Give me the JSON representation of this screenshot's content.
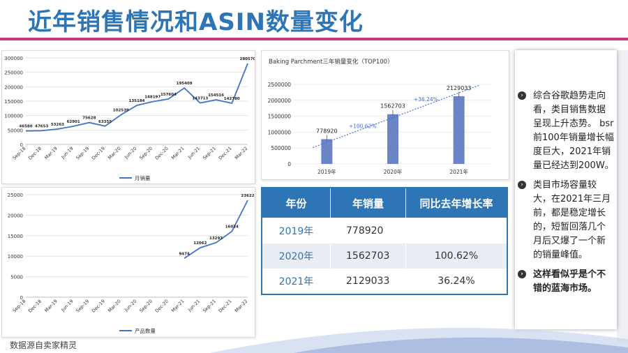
{
  "title": "近年销售情况和ASIN数量变化",
  "footer": "数据源自卖家精灵",
  "colors": {
    "accent": "#2e75b6",
    "title_bar": "#c73b7a",
    "line": "#4472c4",
    "bar": "#6b84c6"
  },
  "chart_data": [
    {
      "type": "line",
      "title": "",
      "x": [
        "Sep-18",
        "Dec-18",
        "Mar-19",
        "Jun-19",
        "Sep-19",
        "Dec-19",
        "Mar-20",
        "Jun-20",
        "Sep-20",
        "Dec-20",
        "Mar-21",
        "Jun-21",
        "Sep-21",
        "Dec-21",
        "Mar-22"
      ],
      "series": [
        {
          "name": "月销量",
          "values": [
            46580,
            47653,
            53263,
            62901,
            75628,
            63355,
            102539,
            135184,
            148197,
            157604,
            195409,
            143713,
            154516,
            142780,
            280570
          ]
        }
      ],
      "ylim": [
        0,
        300000
      ],
      "yticks": [
        "0",
        "50000",
        "100000",
        "150000",
        "200000",
        "250000",
        "300000"
      ],
      "grid": true,
      "legend": "bottom"
    },
    {
      "type": "line",
      "title": "",
      "x": [
        "Sep-18",
        "Dec-18",
        "Mar-19",
        "Jun-19",
        "Sep-19",
        "Dec-19",
        "Mar-20",
        "Jun-20",
        "Sep-20",
        "Dec-20",
        "Mar-21",
        "Jun-21",
        "Sep-21",
        "Dec-21",
        "Mar-22"
      ],
      "series": [
        {
          "name": "产品数量",
          "values": [
            null,
            null,
            null,
            null,
            null,
            null,
            null,
            null,
            null,
            null,
            9474,
            12062,
            13293,
            16034,
            23622
          ]
        }
      ],
      "ylim": [
        0,
        25000
      ],
      "yticks": [
        "0",
        "5000",
        "10000",
        "15000",
        "20000",
        "25000"
      ],
      "grid": true,
      "legend": "bottom"
    },
    {
      "type": "bar",
      "title": "Baking Parchment三年销量变化（TOP100）",
      "categories": [
        "2019年",
        "2020年",
        "2021年"
      ],
      "values": [
        778920,
        1562703,
        2129033
      ],
      "ylim": [
        0,
        2500000
      ],
      "yticks": [
        "0",
        "500000",
        "1000000",
        "1500000",
        "2000000",
        "2500000"
      ],
      "annotations": [
        "+100.62%",
        "+36.24%"
      ],
      "trendline": true
    }
  ],
  "table": {
    "headers": [
      "年份",
      "年销量",
      "同比去年增长率"
    ],
    "rows": [
      [
        "2019年",
        "778920",
        ""
      ],
      [
        "2020年",
        "1562703",
        "100.62%"
      ],
      [
        "2021年",
        "2129033",
        "36.24%"
      ]
    ]
  },
  "panel": {
    "bullets": [
      {
        "text": "综合谷歌趋势走向看，类目销售数据呈现上升态势。  bsr前100年销量增长幅度巨大，2021年销量已经达到200W。",
        "bold": false
      },
      {
        "text": "类目市场容量较大，在2021年三月前，都是稳定增长的，短暂回落几个月后又爆了一个新的销量峰值。",
        "bold": false
      },
      {
        "text": "这样看似乎是个不错的蓝海市场。",
        "bold": true
      }
    ]
  }
}
